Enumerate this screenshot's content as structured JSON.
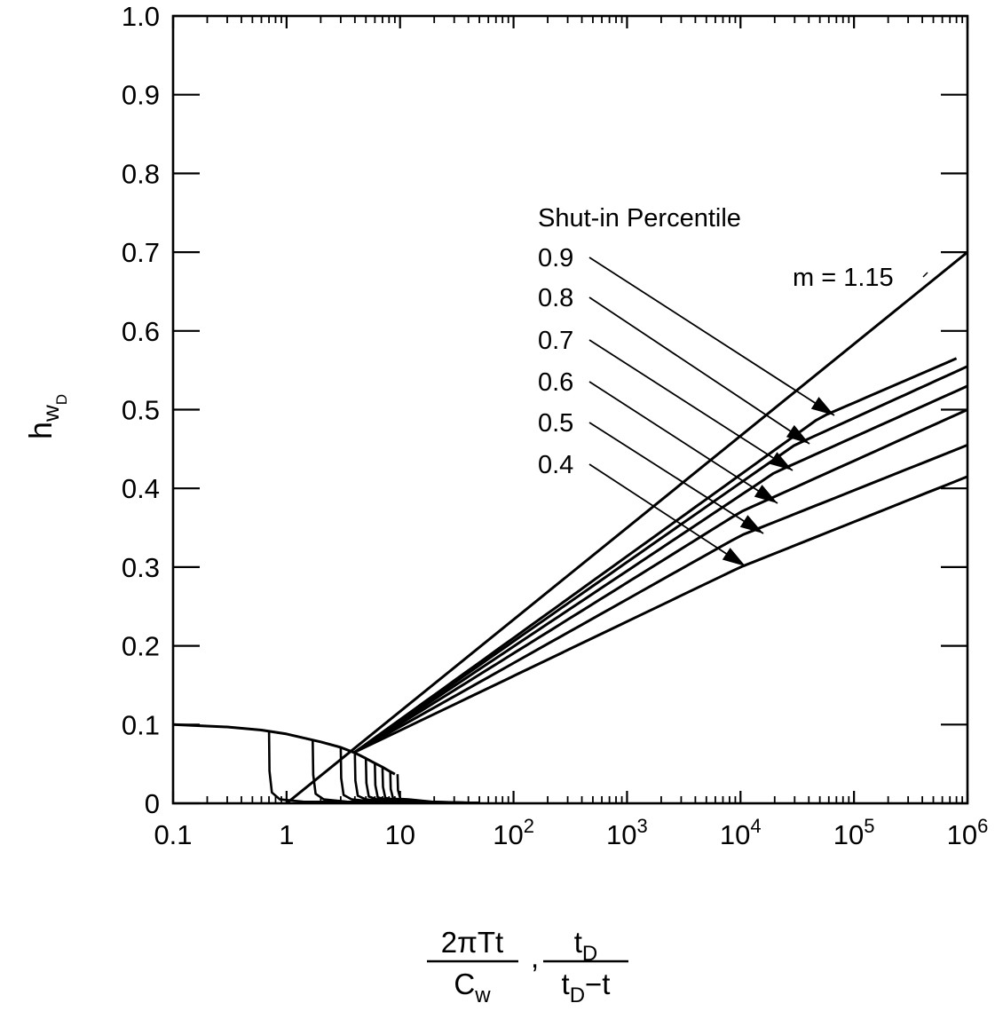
{
  "chart_data": {
    "type": "line",
    "x_scale": "log",
    "xlim": [
      0.1,
      1000000
    ],
    "ylim": [
      0,
      1.0
    ],
    "grid": false,
    "xlabel": {
      "num1": "2πTt",
      "den1": "C",
      "den1_sub": "w",
      "sep": ",",
      "num2": "t",
      "num2_sub": "D",
      "den2_a": "t",
      "den2_sub": "D",
      "den2_b": "−t"
    },
    "ylabel": {
      "main": "h",
      "sub1": "w",
      "sub2": "D"
    },
    "x_ticks": [
      {
        "value": 0.1,
        "label": "0.1"
      },
      {
        "value": 1,
        "label": "1"
      },
      {
        "value": 10,
        "label": "10"
      },
      {
        "value": 100,
        "label": "10",
        "sup": "2"
      },
      {
        "value": 1000,
        "label": "10",
        "sup": "3"
      },
      {
        "value": 10000,
        "label": "10",
        "sup": "4"
      },
      {
        "value": 100000,
        "label": "10",
        "sup": "5"
      },
      {
        "value": 1000000,
        "label": "10",
        "sup": "6"
      }
    ],
    "y_ticks": [
      "0",
      "0.1",
      "0.2",
      "0.3",
      "0.4",
      "0.5",
      "0.6",
      "0.7",
      "0.8",
      "0.9",
      "1.0"
    ],
    "legend_title": "Shut-in Percentile",
    "m_label": "m = 1.15",
    "m_line": {
      "x": [
        1,
        1000000
      ],
      "y": [
        0,
        0.7
      ]
    },
    "series": [
      {
        "name": "0.9",
        "x": [
          4,
          50000,
          800000
        ],
        "y": [
          0.065,
          0.49,
          0.565
        ]
      },
      {
        "name": "0.8",
        "x": [
          4,
          30000,
          1000000
        ],
        "y": [
          0.065,
          0.455,
          0.555
        ]
      },
      {
        "name": "0.7",
        "x": [
          4,
          20000,
          1000000
        ],
        "y": [
          0.065,
          0.42,
          0.53
        ]
      },
      {
        "name": "0.6",
        "x": [
          4,
          10000,
          1000000
        ],
        "y": [
          0.065,
          0.37,
          0.5
        ]
      },
      {
        "name": "0.5",
        "x": [
          4,
          10000,
          1000000
        ],
        "y": [
          0.065,
          0.34,
          0.455
        ]
      },
      {
        "name": "0.4",
        "x": [
          4,
          10000,
          1000000
        ],
        "y": [
          0.065,
          0.3,
          0.415
        ]
      }
    ],
    "pumping_curve": {
      "x": [
        0.1,
        0.3,
        0.6,
        1,
        2,
        3,
        4,
        5,
        6,
        7,
        8,
        9
      ],
      "y": [
        0.1,
        0.097,
        0.093,
        0.088,
        0.078,
        0.071,
        0.064,
        0.057,
        0.051,
        0.046,
        0.041,
        0.037
      ]
    },
    "recovery_starts": [
      0.7,
      1.7,
      3,
      4,
      5,
      6,
      7,
      8.2,
      9.5
    ]
  }
}
